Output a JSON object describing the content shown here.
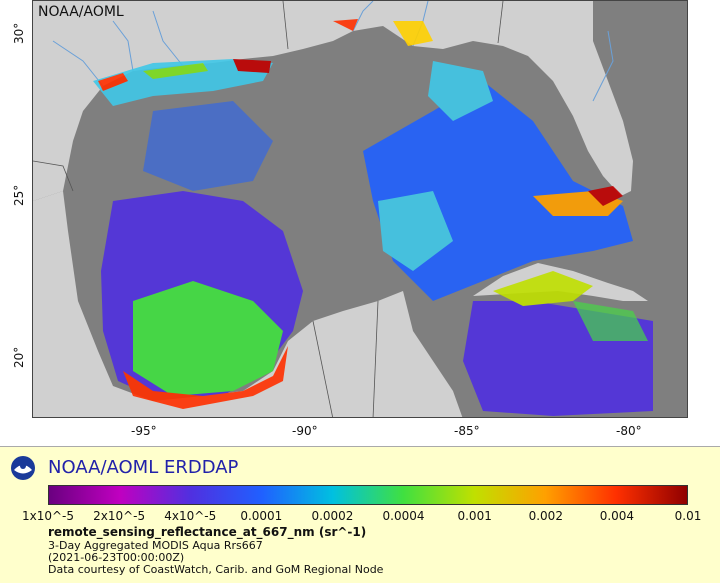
{
  "map": {
    "watermark": "NOAA/AOML",
    "lon_ticks": [
      "-95°",
      "-90°",
      "-85°",
      "-80°"
    ],
    "lat_ticks": [
      "30°",
      "25°",
      "20°"
    ],
    "colors": {
      "land": "#d0d0d0",
      "nodata": "#7f7f7f",
      "rivers": "#6aa0d8",
      "borders": "#555555"
    }
  },
  "legend": {
    "brand": "NOAA/AOML ERDDAP",
    "colorbar_labels": [
      "1x10^-5",
      "2x10^-5",
      "4x10^-5",
      "0.0001",
      "0.0002",
      "0.0004",
      "0.001",
      "0.002",
      "0.004",
      "0.01"
    ],
    "variable": "remote_sensing_reflectance_at_667_nm (sr^-1)",
    "dataset": "3-Day Aggregated MODIS Aqua Rrs667",
    "time": "(2021-06-23T00:00:00Z)",
    "credit": "Data courtesy of CoastWatch, Carib. and GoM Regional Node",
    "colormap": [
      "#6a0080",
      "#c000c0",
      "#5030e0",
      "#2060ff",
      "#00c0e0",
      "#40e040",
      "#c0e000",
      "#ffa000",
      "#ff3000",
      "#900000"
    ]
  }
}
